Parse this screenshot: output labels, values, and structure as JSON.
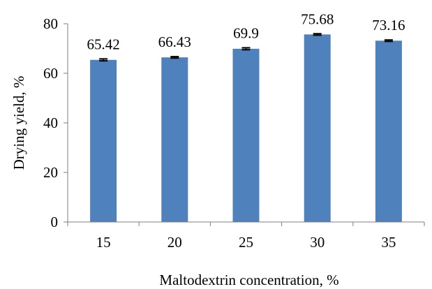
{
  "chart_data": {
    "type": "bar",
    "title": "",
    "xlabel": "Maltodextrin concentration, %",
    "ylabel": "Drying yield, %",
    "categories": [
      "15",
      "20",
      "25",
      "30",
      "35"
    ],
    "values": [
      65.42,
      66.43,
      69.9,
      75.68,
      73.16
    ],
    "data_labels": [
      "65.42",
      "66.43",
      "69.9",
      "75.68",
      "73.16"
    ],
    "error": [
      0.4,
      0.3,
      0.4,
      0.3,
      0.3
    ],
    "ylim": [
      0,
      80
    ],
    "yticks": [
      0,
      20,
      40,
      60,
      80
    ],
    "grid": false,
    "legend": "none",
    "bar_color": "#4F81BD"
  }
}
